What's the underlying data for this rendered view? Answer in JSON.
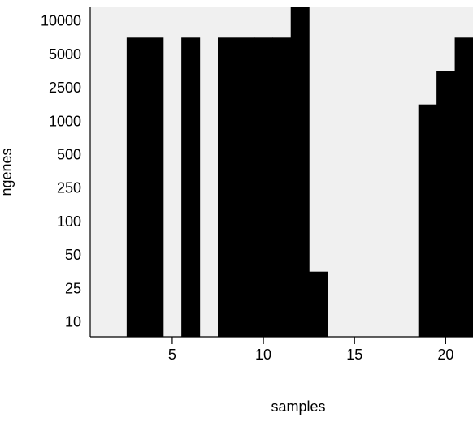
{
  "chart_data": {
    "type": "heatmap",
    "title": "",
    "xlabel": "samples",
    "ylabel": "ngenes",
    "x_ticks": [
      5,
      10,
      15,
      20
    ],
    "y_ticks": [
      "10",
      "25",
      "50",
      "100",
      "250",
      "500",
      "1000",
      "2500",
      "5000",
      "10000"
    ],
    "xlim": [
      0.5,
      21.5
    ],
    "background_color": "#f0f0f0",
    "bar_color": "#000000",
    "samples": [
      1,
      2,
      3,
      4,
      5,
      6,
      7,
      8,
      9,
      10,
      11,
      12,
      13,
      14,
      15,
      16,
      17,
      18,
      19,
      20,
      21
    ],
    "max_ngenes_level": [
      0,
      0,
      9,
      9,
      0,
      9,
      0,
      9,
      9,
      9,
      9,
      10,
      2,
      0,
      0,
      0,
      0,
      0,
      7,
      8,
      9
    ],
    "min_ngenes_level": [
      0,
      0,
      1,
      1,
      0,
      1,
      0,
      1,
      1,
      1,
      1,
      1,
      1,
      0,
      0,
      0,
      0,
      0,
      1,
      1,
      1
    ]
  }
}
